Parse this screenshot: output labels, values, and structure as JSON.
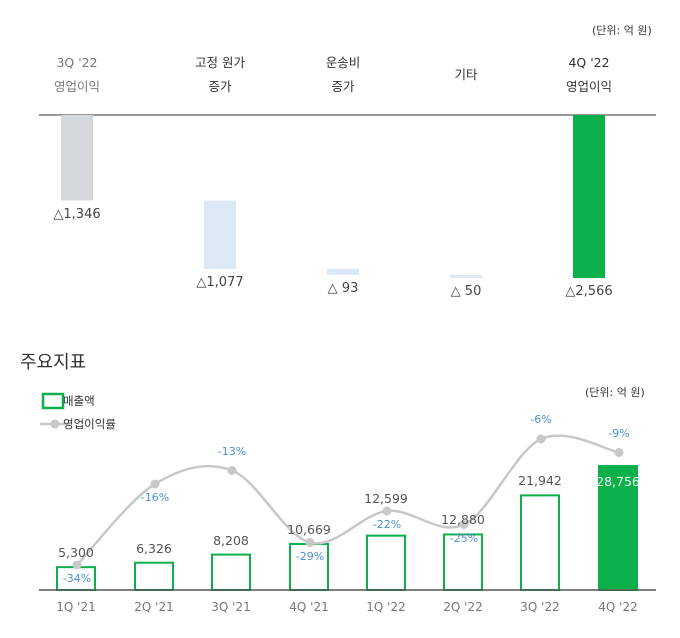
{
  "chart_data": [
    {
      "type": "bar",
      "subtype": "waterfall",
      "unit_label": "(단위: 억 원)",
      "categories": [
        [
          "3Q '22",
          "영업이익"
        ],
        [
          "고정 원가",
          "증가"
        ],
        [
          "운송비",
          "증가"
        ],
        [
          "기타"
        ],
        [
          "4Q '22",
          "영업이익"
        ]
      ],
      "values": [
        -1346,
        -1077,
        -93,
        -50,
        -2566
      ],
      "data_labels": [
        "△1,346",
        "△1,077",
        "△ 93",
        "△ 50",
        "△2,566"
      ],
      "colors": [
        "#d5d9dd",
        "#dce8f5",
        "#dce8f5",
        "#dce8f5",
        "#0bb04b"
      ]
    },
    {
      "type": "bar+line",
      "title": "주요지표",
      "unit_label": "(단위: 억 원)",
      "categories": [
        "1Q '21",
        "2Q '21",
        "3Q '21",
        "4Q '21",
        "1Q '22",
        "2Q '22",
        "3Q '22",
        "4Q '22"
      ],
      "series": [
        {
          "name": "매출액",
          "type": "bar",
          "values": [
            5300,
            6326,
            8208,
            10669,
            12599,
            12880,
            21942,
            28756
          ],
          "labels": [
            "5,300",
            "6,326",
            "8,208",
            "10,669",
            "12,599",
            "12,880",
            "21,942",
            "28,756"
          ],
          "color": "#0bb04b"
        },
        {
          "name": "영업이익률",
          "type": "line",
          "values": [
            -34,
            -16,
            -13,
            -29,
            -22,
            -25,
            -6,
            -9
          ],
          "labels": [
            "-34%",
            "-16%",
            "-13%",
            "-29%",
            "-22%",
            "-25%",
            "-6%",
            "-9%"
          ],
          "color": "#c8c8c8",
          "label_color": "#4a90d9"
        }
      ]
    }
  ]
}
